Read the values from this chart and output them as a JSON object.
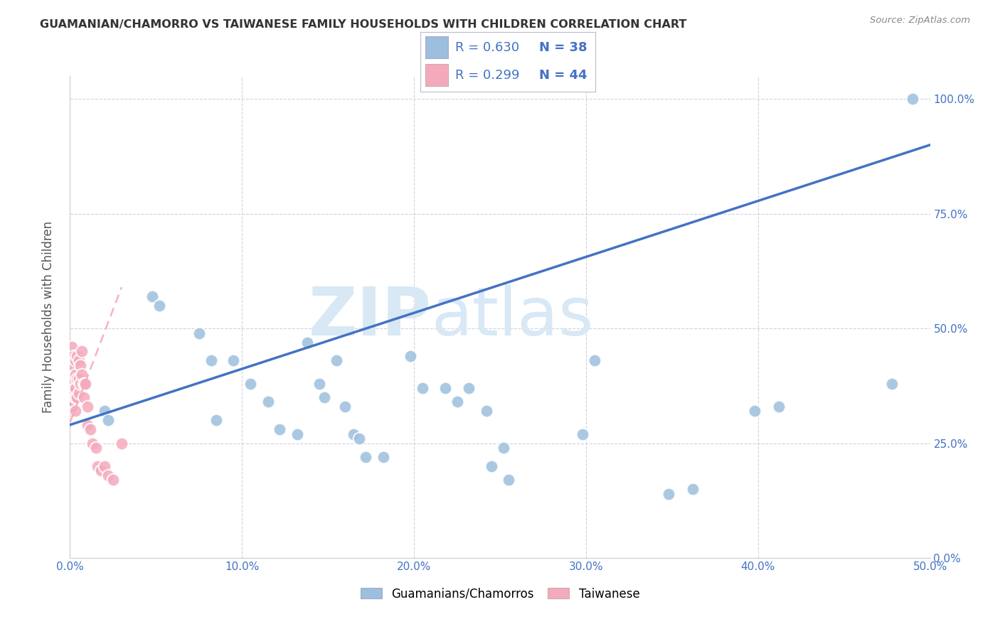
{
  "title": "GUAMANIAN/CHAMORRO VS TAIWANESE FAMILY HOUSEHOLDS WITH CHILDREN CORRELATION CHART",
  "source": "Source: ZipAtlas.com",
  "ylabel_label": "Family Households with Children",
  "legend_blue_R": "R = 0.630",
  "legend_blue_N": "N = 38",
  "legend_pink_R": "R = 0.299",
  "legend_pink_N": "N = 44",
  "legend_label_blue": "Guamanians/Chamorros",
  "legend_label_pink": "Taiwanese",
  "blue_color": "#9BBFDD",
  "pink_color": "#F4AABC",
  "blue_line_color": "#4472C4",
  "pink_line_color": "#F4AABC",
  "text_blue": "#4472C4",
  "watermark_color": "#D8E8F5",
  "xlim": [
    0.0,
    0.5
  ],
  "ylim": [
    0.0,
    1.05
  ],
  "blue_dots_x": [
    0.02,
    0.022,
    0.048,
    0.052,
    0.075,
    0.082,
    0.085,
    0.095,
    0.105,
    0.115,
    0.122,
    0.132,
    0.138,
    0.145,
    0.148,
    0.155,
    0.16,
    0.165,
    0.168,
    0.172,
    0.182,
    0.198,
    0.205,
    0.218,
    0.225,
    0.232,
    0.242,
    0.245,
    0.252,
    0.255,
    0.298,
    0.305,
    0.348,
    0.362,
    0.398,
    0.412,
    0.478,
    0.49
  ],
  "blue_dots_y": [
    0.32,
    0.3,
    0.57,
    0.55,
    0.49,
    0.43,
    0.3,
    0.43,
    0.38,
    0.34,
    0.28,
    0.27,
    0.47,
    0.38,
    0.35,
    0.43,
    0.33,
    0.27,
    0.26,
    0.22,
    0.22,
    0.44,
    0.37,
    0.37,
    0.34,
    0.37,
    0.32,
    0.2,
    0.24,
    0.17,
    0.27,
    0.43,
    0.14,
    0.15,
    0.32,
    0.33,
    0.38,
    1.0
  ],
  "pink_dots_x": [
    0.0,
    0.0,
    0.0,
    0.0,
    0.001,
    0.001,
    0.001,
    0.001,
    0.001,
    0.001,
    0.002,
    0.002,
    0.002,
    0.002,
    0.002,
    0.003,
    0.003,
    0.003,
    0.003,
    0.003,
    0.004,
    0.004,
    0.004,
    0.005,
    0.005,
    0.005,
    0.006,
    0.006,
    0.007,
    0.007,
    0.008,
    0.008,
    0.009,
    0.01,
    0.01,
    0.012,
    0.013,
    0.015,
    0.016,
    0.018,
    0.02,
    0.022,
    0.025,
    0.03
  ],
  "pink_dots_y": [
    0.42,
    0.38,
    0.35,
    0.32,
    0.46,
    0.43,
    0.4,
    0.37,
    0.35,
    0.33,
    0.44,
    0.42,
    0.39,
    0.36,
    0.34,
    0.43,
    0.4,
    0.37,
    0.35,
    0.32,
    0.44,
    0.39,
    0.35,
    0.43,
    0.39,
    0.36,
    0.42,
    0.38,
    0.45,
    0.4,
    0.38,
    0.35,
    0.38,
    0.33,
    0.29,
    0.28,
    0.25,
    0.24,
    0.2,
    0.19,
    0.2,
    0.18,
    0.17,
    0.25
  ],
  "blue_trend_x0": 0.0,
  "blue_trend_y0": 0.29,
  "blue_trend_x1": 0.5,
  "blue_trend_y1": 0.9,
  "pink_trend_x0": 0.0,
  "pink_trend_y0": 0.295,
  "pink_trend_x1": 0.03,
  "pink_trend_y1": 0.59
}
